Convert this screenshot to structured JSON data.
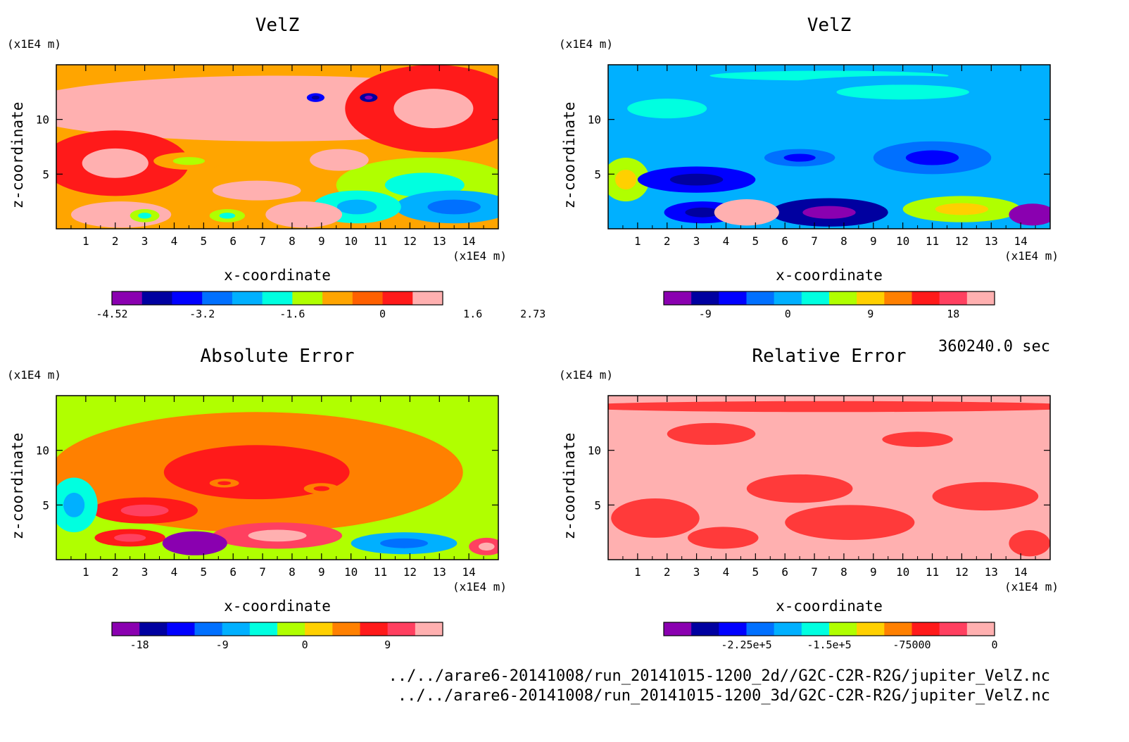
{
  "chart_data": [
    {
      "type": "heatmap",
      "title": "VelZ",
      "xlabel": "x-coordinate",
      "ylabel": "z-coordinate",
      "x_unit": "(x1E4 m)",
      "y_unit": "(x1E4 m)",
      "xlim": [
        0,
        15
      ],
      "ylim": [
        0,
        15
      ],
      "xticks": [
        "1",
        "2",
        "3",
        "4",
        "5",
        "6",
        "7",
        "8",
        "9",
        "10",
        "11",
        "12",
        "13",
        "14"
      ],
      "yticks": [
        "5",
        "10"
      ],
      "background": "#ffa500",
      "colorbar": {
        "colors": [
          "#8a00b0",
          "#0000a0",
          "#0000ff",
          "#0070ff",
          "#00b0ff",
          "#00ffe0",
          "#b0ff00",
          "#ffa500",
          "#ff6000",
          "#ff1a1a",
          "#ffb0b0"
        ],
        "labels": [
          "-4.52",
          "-3.2",
          "-1.6",
          "0",
          "1.6",
          "2.73"
        ],
        "label_positions": [
          0,
          3,
          6,
          9,
          12,
          14
        ]
      },
      "features": [
        {
          "x": 7.5,
          "z": 11,
          "rx": 9,
          "rz": 3,
          "value": 1
        },
        {
          "x": 2,
          "z": 6,
          "rx": 2.5,
          "rz": 3,
          "value": 0.3
        },
        {
          "x": 12.8,
          "z": 11,
          "rx": 3,
          "rz": 4,
          "value": 0.3
        },
        {
          "x": 12.5,
          "z": 4,
          "rx": 3,
          "rz": 2.5,
          "value": -1.3
        },
        {
          "x": 13.5,
          "z": 2,
          "rx": 2,
          "rz": 1.5,
          "value": -2
        },
        {
          "x": 10.2,
          "z": 2,
          "rx": 1.5,
          "rz": 1.5,
          "value": -1.5
        },
        {
          "x": 4.5,
          "z": 6.2,
          "rx": 1.2,
          "rz": 0.8,
          "value": -0.6
        },
        {
          "x": 9.6,
          "z": 6.3,
          "rx": 1,
          "rz": 1,
          "value": 1.6
        },
        {
          "x": 2.2,
          "z": 1.3,
          "rx": 1.7,
          "rz": 1.2,
          "value": 2
        },
        {
          "x": 8.4,
          "z": 1.3,
          "rx": 1.3,
          "rz": 1.2,
          "value": 2.3
        },
        {
          "x": 6.8,
          "z": 3.5,
          "rx": 1.5,
          "rz": 0.9,
          "value": 1.8
        },
        {
          "x": 10.6,
          "z": 12,
          "rx": 0.3,
          "rz": 0.4,
          "value": -4
        },
        {
          "x": 8.8,
          "z": 12,
          "rx": 0.3,
          "rz": 0.4,
          "value": -3
        },
        {
          "x": 3,
          "z": 1.2,
          "rx": 0.5,
          "rz": 0.6,
          "value": -1.2
        },
        {
          "x": 5.8,
          "z": 1.2,
          "rx": 0.6,
          "rz": 0.6,
          "value": -1.4
        }
      ]
    },
    {
      "type": "heatmap",
      "title": "VelZ",
      "xlabel": "x-coordinate",
      "ylabel": "z-coordinate",
      "x_unit": "(x1E4 m)",
      "y_unit": "(x1E4 m)",
      "xlim": [
        0,
        15
      ],
      "ylim": [
        0,
        15
      ],
      "xticks": [
        "1",
        "2",
        "3",
        "4",
        "5",
        "6",
        "7",
        "8",
        "9",
        "10",
        "11",
        "12",
        "13",
        "14"
      ],
      "yticks": [
        "5",
        "10"
      ],
      "background": "#00b0ff",
      "colorbar": {
        "colors": [
          "#8a00b0",
          "#0000a0",
          "#0000ff",
          "#0070ff",
          "#00b0ff",
          "#00ffe0",
          "#b0ff00",
          "#ffd000",
          "#ff8000",
          "#ff1a1a",
          "#ff4060",
          "#ffb0b0"
        ],
        "labels": [
          "-9",
          "0",
          "9",
          "18"
        ],
        "label_positions": [
          1.5,
          4.5,
          7.5,
          10.5
        ]
      },
      "features": [
        {
          "x": 7.5,
          "z": 14,
          "rx": 9,
          "rz": 1,
          "value": 0.5
        },
        {
          "x": 10,
          "z": 12.5,
          "rx": 5,
          "rz": 1.5,
          "value": 0.2
        },
        {
          "x": 2,
          "z": 11,
          "rx": 3,
          "rz": 2,
          "value": 0.2
        },
        {
          "x": 0.6,
          "z": 4.5,
          "rx": 0.8,
          "rz": 2,
          "value": 6
        },
        {
          "x": 3,
          "z": 4.5,
          "rx": 2,
          "rz": 1.2,
          "value": -6
        },
        {
          "x": 7.5,
          "z": 1.5,
          "rx": 2,
          "rz": 1.3,
          "value": -9
        },
        {
          "x": 3.2,
          "z": 1.5,
          "rx": 1.3,
          "rz": 1,
          "value": -7
        },
        {
          "x": 12,
          "z": 1.8,
          "rx": 2,
          "rz": 1.2,
          "value": 6
        },
        {
          "x": 14.4,
          "z": 1.3,
          "rx": 0.8,
          "rz": 1,
          "value": -11
        },
        {
          "x": 4.7,
          "z": 1.5,
          "rx": 1.1,
          "rz": 1.2,
          "value": 20
        },
        {
          "x": 6.5,
          "z": 6.5,
          "rx": 1.2,
          "rz": 0.8,
          "value": -4
        },
        {
          "x": 11,
          "z": 6.5,
          "rx": 2,
          "rz": 1.5,
          "value": -3
        }
      ]
    },
    {
      "type": "heatmap",
      "title": "Absolute Error",
      "xlabel": "x-coordinate",
      "ylabel": "z-coordinate",
      "x_unit": "(x1E4 m)",
      "y_unit": "(x1E4 m)",
      "xlim": [
        0,
        15
      ],
      "ylim": [
        0,
        15
      ],
      "xticks": [
        "1",
        "2",
        "3",
        "4",
        "5",
        "6",
        "7",
        "8",
        "9",
        "10",
        "11",
        "12",
        "13",
        "14"
      ],
      "yticks": [
        "5",
        "10"
      ],
      "background": "#b0ff00",
      "colorbar": {
        "colors": [
          "#8a00b0",
          "#0000a0",
          "#0000ff",
          "#0070ff",
          "#00b0ff",
          "#00ffe0",
          "#b0ff00",
          "#ffd000",
          "#ff8000",
          "#ff1a1a",
          "#ff4060",
          "#ffb0b0"
        ],
        "labels": [
          "-18",
          "-9",
          "0",
          "9"
        ],
        "label_positions": [
          1,
          4,
          7,
          10
        ]
      },
      "features": [
        {
          "x": 6.8,
          "z": 8,
          "rx": 7,
          "rz": 5.5,
          "value": 3
        },
        {
          "x": 3,
          "z": 4.5,
          "rx": 1.8,
          "rz": 1.2,
          "value": 7
        },
        {
          "x": 7.5,
          "z": 2.2,
          "rx": 2.2,
          "rz": 1.2,
          "value": 10
        },
        {
          "x": 2.5,
          "z": 2,
          "rx": 1.2,
          "rz": 0.8,
          "value": 6
        },
        {
          "x": 4.7,
          "z": 1.5,
          "rx": 1.1,
          "rz": 1.1,
          "value": -20
        },
        {
          "x": 11.8,
          "z": 1.5,
          "rx": 1.8,
          "rz": 1,
          "value": -8
        },
        {
          "x": 14.6,
          "z": 1.2,
          "rx": 0.6,
          "rz": 0.8,
          "value": 11
        },
        {
          "x": 0.6,
          "z": 5,
          "rx": 0.8,
          "rz": 2.5,
          "value": -5
        },
        {
          "x": 9,
          "z": 6.5,
          "rx": 0.6,
          "rz": 0.5,
          "value": 4
        },
        {
          "x": 5.7,
          "z": 7,
          "rx": 0.5,
          "rz": 0.4,
          "value": 4
        }
      ]
    },
    {
      "type": "heatmap",
      "title": "Relative Error",
      "xlabel": "x-coordinate",
      "ylabel": "z-coordinate",
      "x_unit": "(x1E4 m)",
      "y_unit": "(x1E4 m)",
      "xlim": [
        0,
        15
      ],
      "ylim": [
        0,
        15
      ],
      "xticks": [
        "1",
        "2",
        "3",
        "4",
        "5",
        "6",
        "7",
        "8",
        "9",
        "10",
        "11",
        "12",
        "13",
        "14"
      ],
      "yticks": [
        "5",
        "10"
      ],
      "background": "#ffb0b0",
      "colorbar": {
        "colors": [
          "#8a00b0",
          "#0000a0",
          "#0000ff",
          "#0070ff",
          "#00b0ff",
          "#00ffe0",
          "#b0ff00",
          "#ffd000",
          "#ff8000",
          "#ff1a1a",
          "#ff4060",
          "#ffb0b0"
        ],
        "labels": [
          "-2.25e+5",
          "-1.5e+5",
          "-75000",
          "0"
        ],
        "label_positions": [
          3,
          6,
          9,
          12
        ]
      },
      "features": [
        {
          "x": 1.6,
          "z": 3.8,
          "rx": 1.5,
          "rz": 1.8,
          "value": 1
        },
        {
          "x": 3.5,
          "z": 11.5,
          "rx": 1.5,
          "rz": 1,
          "value": 1
        },
        {
          "x": 6.5,
          "z": 6.5,
          "rx": 1.8,
          "rz": 1.3,
          "value": 1
        },
        {
          "x": 8.2,
          "z": 3.4,
          "rx": 2.2,
          "rz": 1.6,
          "value": 1
        },
        {
          "x": 10.5,
          "z": 11,
          "rx": 1.2,
          "rz": 0.7,
          "value": 1
        },
        {
          "x": 12.8,
          "z": 5.8,
          "rx": 1.8,
          "rz": 1.3,
          "value": 1
        },
        {
          "x": 14.3,
          "z": 1.5,
          "rx": 0.7,
          "rz": 1.2,
          "value": 1
        },
        {
          "x": 3.9,
          "z": 2,
          "rx": 1.2,
          "rz": 1,
          "value": 1
        },
        {
          "x": 7.5,
          "z": 14,
          "rx": 9,
          "rz": 0.5,
          "value": 1
        }
      ]
    }
  ],
  "time_label": "360240.0 sec",
  "file_paths": [
    "../../arare6-20141008/run_20141015-1200_2d//G2C-C2R-R2G/jupiter_VelZ.nc",
    "../../arare6-20141008/run_20141015-1200_3d/G2C-C2R-R2G/jupiter_VelZ.nc"
  ]
}
